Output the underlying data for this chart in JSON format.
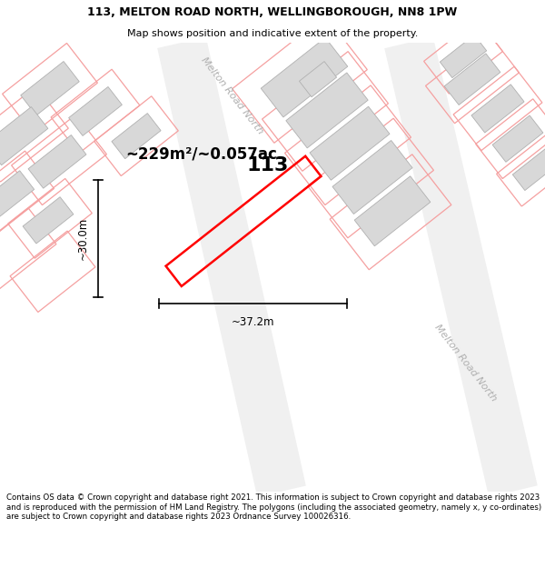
{
  "title_line1": "113, MELTON ROAD NORTH, WELLINGBOROUGH, NN8 1PW",
  "title_line2": "Map shows position and indicative extent of the property.",
  "footer_text": "Contains OS data © Crown copyright and database right 2021. This information is subject to Crown copyright and database rights 2023 and is reproduced with the permission of HM Land Registry. The polygons (including the associated geometry, namely x, y co-ordinates) are subject to Crown copyright and database rights 2023 Ordnance Survey 100026316.",
  "area_label": "~229m²/~0.057ac.",
  "plot_number": "113",
  "dim_width": "~37.2m",
  "dim_height": "~30.0m",
  "road_label_top": "Melton Road North",
  "road_label_right": "Melton Road North",
  "map_bg": "#ffffff",
  "plot_color": "#ff0000",
  "building_fill": "#d8d8d8",
  "building_edge": "#b0b0b0",
  "parcel_color": "#f5a0a0",
  "road_fill": "#f5f5f5"
}
